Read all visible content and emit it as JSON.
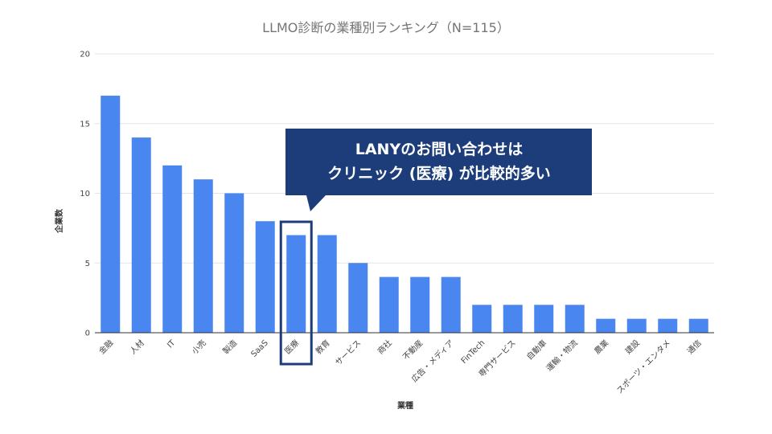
{
  "chart_data": {
    "type": "bar",
    "title": "LLMO診断の業種別ランキング（N=115）",
    "xlabel": "業種",
    "ylabel": "企業数",
    "ylim": [
      0,
      20
    ],
    "yticks": [
      0,
      5,
      10,
      15,
      20
    ],
    "grid": true,
    "categories": [
      "金融",
      "人材",
      "IT",
      "小売",
      "製造",
      "SaaS",
      "医療",
      "教育",
      "サービス",
      "商社",
      "不動産",
      "広告・メディア",
      "FinTech",
      "専門サービス",
      "自動車",
      "運輸・物流",
      "農業",
      "建設",
      "スポーツ・エンタメ",
      "通信"
    ],
    "values": [
      17,
      14,
      12,
      11,
      10,
      8,
      7,
      7,
      5,
      4,
      4,
      4,
      2,
      2,
      2,
      2,
      1,
      1,
      1,
      1
    ],
    "bar_color": "#4a86f0",
    "highlight": {
      "category": "医療",
      "color": "#1c3d7a"
    }
  },
  "callout": {
    "line1": "LANYのお問い合わせは",
    "line2": "クリニック (医療) が比較的多い",
    "bg_color": "#1c3d7a"
  }
}
